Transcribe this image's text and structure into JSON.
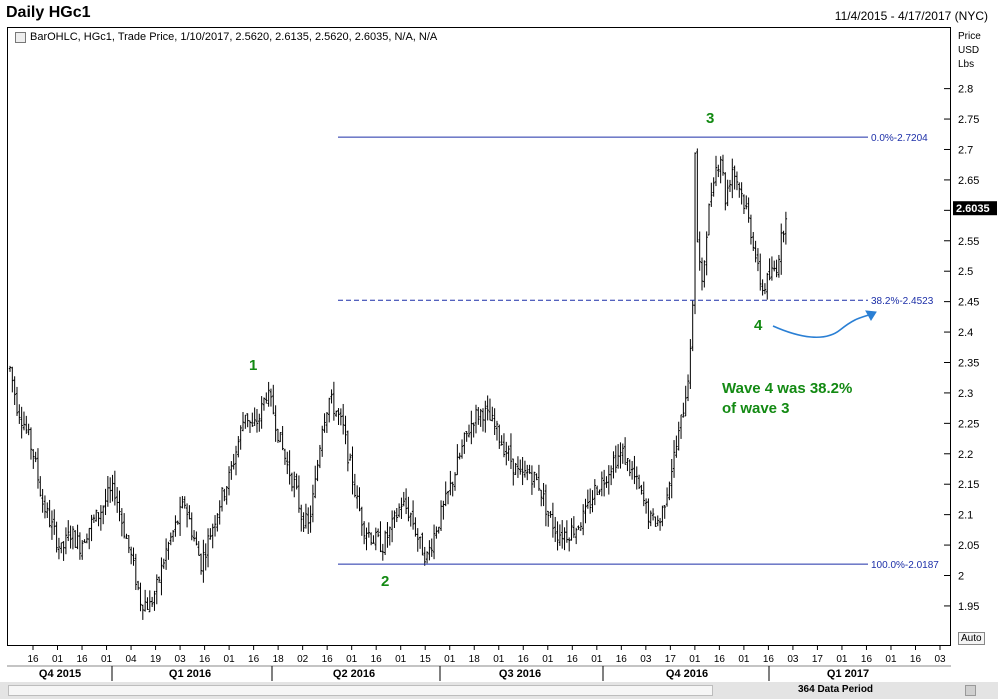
{
  "header": {
    "title": "Daily HGc1",
    "date_range": "11/4/2015 - 4/17/2017 (NYC)",
    "legend": "BarOHLC, HGc1, Trade Price,  1/10/2017, 2.5620, 2.6135, 2.5620, 2.6035, N/A, N/A"
  },
  "price_axis": {
    "header_lines": [
      "Price",
      "USD",
      "Lbs"
    ],
    "last_price": "2.6035",
    "auto_label": "Auto"
  },
  "footer": {
    "data_period": "364 Data Period"
  },
  "colors": {
    "bars": "#000000",
    "fib_lines": "#1c2fa8",
    "wave_labels": "#138a13",
    "arrow": "#2a7fd4",
    "last_price_bg": "#000000"
  },
  "chart_data": {
    "type": "bar",
    "style": "OHLC",
    "instrument": "HGc1",
    "y_axis": {
      "ylim": [
        1.91,
        2.88
      ],
      "ticks": [
        "2.8",
        "2.75",
        "2.7",
        "2.65",
        "2.6",
        "2.55",
        "2.5",
        "2.45",
        "2.4",
        "2.35",
        "2.3",
        "2.25",
        "2.2",
        "2.15",
        "2.1",
        "2.05",
        "2",
        "1.95"
      ]
    },
    "x_axis": {
      "day_ticks": [
        "16",
        "01",
        "16",
        "01",
        "04",
        "19",
        "03",
        "16",
        "01",
        "16",
        "18",
        "02",
        "16",
        "01",
        "16",
        "01",
        "15",
        "01",
        "18",
        "01",
        "16",
        "01",
        "16",
        "01",
        "16",
        "03",
        "17",
        "01",
        "16",
        "01",
        "16",
        "03",
        "17",
        "01",
        "16",
        "01",
        "16",
        "03"
      ],
      "quarter_labels": [
        "Q4 2015",
        "Q1 2016",
        "Q2 2016",
        "Q3 2016",
        "Q4 2016",
        "Q1 2017"
      ]
    },
    "fib_levels": [
      {
        "label": "0.0%",
        "value": "2.7204"
      },
      {
        "label": "38.2%",
        "value": "2.4523"
      },
      {
        "label": "100.0%",
        "value": "2.0187"
      }
    ],
    "wave_labels": [
      "1",
      "2",
      "3",
      "4"
    ],
    "annotation": [
      "Wave 4 was 38.2%",
      "of wave 3"
    ],
    "anchors": [
      [
        0,
        2.34
      ],
      [
        3,
        2.28
      ],
      [
        6,
        2.25
      ],
      [
        10,
        2.2
      ],
      [
        14,
        2.12
      ],
      [
        18,
        2.08
      ],
      [
        22,
        2.04
      ],
      [
        26,
        2.07
      ],
      [
        30,
        2.05
      ],
      [
        34,
        2.08
      ],
      [
        38,
        2.1
      ],
      [
        42,
        2.13
      ],
      [
        45,
        2.14
      ],
      [
        48,
        2.09
      ],
      [
        52,
        2.03
      ],
      [
        56,
        1.96
      ],
      [
        60,
        1.95
      ],
      [
        63,
        1.98
      ],
      [
        67,
        2.04
      ],
      [
        71,
        2.08
      ],
      [
        75,
        2.12
      ],
      [
        79,
        2.06
      ],
      [
        82,
        2.02
      ],
      [
        86,
        2.07
      ],
      [
        90,
        2.12
      ],
      [
        94,
        2.16
      ],
      [
        98,
        2.22
      ],
      [
        101,
        2.27
      ],
      [
        104,
        2.24
      ],
      [
        107,
        2.26
      ],
      [
        110,
        2.3
      ],
      [
        113,
        2.27
      ],
      [
        116,
        2.22
      ],
      [
        119,
        2.18
      ],
      [
        122,
        2.15
      ],
      [
        125,
        2.1
      ],
      [
        128,
        2.08
      ],
      [
        131,
        2.15
      ],
      [
        134,
        2.25
      ],
      [
        137,
        2.29
      ],
      [
        140,
        2.27
      ],
      [
        143,
        2.24
      ],
      [
        146,
        2.18
      ],
      [
        149,
        2.12
      ],
      [
        152,
        2.08
      ],
      [
        156,
        2.06
      ],
      [
        160,
        2.05
      ],
      [
        164,
        2.08
      ],
      [
        168,
        2.12
      ],
      [
        172,
        2.1
      ],
      [
        176,
        2.05
      ],
      [
        179,
        2.03
      ],
      [
        183,
        2.08
      ],
      [
        187,
        2.12
      ],
      [
        191,
        2.17
      ],
      [
        195,
        2.22
      ],
      [
        199,
        2.26
      ],
      [
        203,
        2.27
      ],
      [
        207,
        2.25
      ],
      [
        211,
        2.22
      ],
      [
        215,
        2.19
      ],
      [
        219,
        2.16
      ],
      [
        223,
        2.17
      ],
      [
        227,
        2.15
      ],
      [
        231,
        2.1
      ],
      [
        235,
        2.07
      ],
      [
        239,
        2.07
      ],
      [
        243,
        2.08
      ],
      [
        247,
        2.1
      ],
      [
        251,
        2.14
      ],
      [
        255,
        2.16
      ],
      [
        259,
        2.19
      ],
      [
        263,
        2.2
      ],
      [
        267,
        2.17
      ],
      [
        271,
        2.13
      ],
      [
        275,
        2.09
      ],
      [
        279,
        2.09
      ],
      [
        283,
        2.16
      ],
      [
        287,
        2.23
      ],
      [
        290,
        2.3
      ],
      [
        292,
        2.36
      ],
      [
        293,
        2.45
      ],
      [
        294,
        2.7
      ],
      [
        295,
        2.55
      ],
      [
        297,
        2.47
      ],
      [
        299,
        2.57
      ],
      [
        302,
        2.66
      ],
      [
        305,
        2.69
      ],
      [
        307,
        2.62
      ],
      [
        310,
        2.67
      ],
      [
        313,
        2.64
      ],
      [
        316,
        2.6
      ],
      [
        319,
        2.55
      ],
      [
        321,
        2.5
      ],
      [
        323,
        2.47
      ],
      [
        326,
        2.49
      ],
      [
        329,
        2.51
      ],
      [
        331,
        2.55
      ],
      [
        333,
        2.6
      ]
    ]
  }
}
